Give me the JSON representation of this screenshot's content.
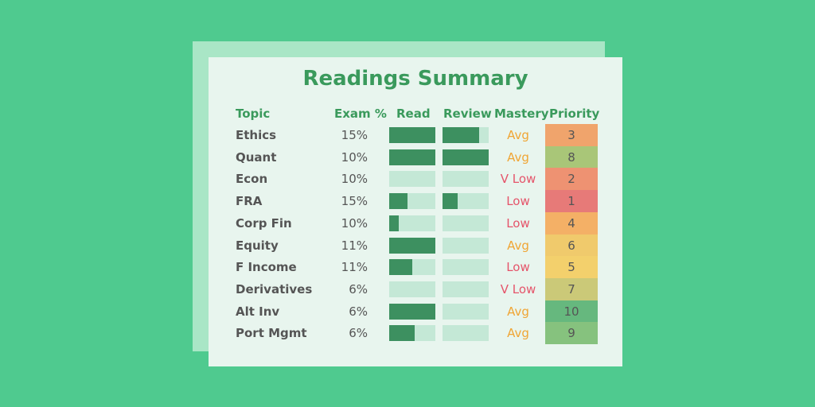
{
  "header": {
    "title": "Readings Summary"
  },
  "table": {
    "columns": [
      "Topic",
      "Exam %",
      "Read",
      "Review",
      "Mastery",
      "Priority"
    ],
    "rows": [
      {
        "topic": "Ethics",
        "exam": "15%",
        "read": 1.0,
        "review": 0.8,
        "mastery": "Avg",
        "mastery_color": "#f0a534",
        "priority": "3",
        "priority_color": "#f0a46c"
      },
      {
        "topic": "Quant",
        "exam": "10%",
        "read": 1.0,
        "review": 1.0,
        "mastery": "Avg",
        "mastery_color": "#f0a534",
        "priority": "8",
        "priority_color": "#a9c678"
      },
      {
        "topic": "Econ",
        "exam": "10%",
        "read": 0,
        "review": 0,
        "mastery": "V Low",
        "mastery_color": "#e5546a",
        "priority": "2",
        "priority_color": "#ee9272"
      },
      {
        "topic": "FRA",
        "exam": "15%",
        "read": 0.4,
        "review": 0.33,
        "mastery": "Low",
        "mastery_color": "#e5546a",
        "priority": "1",
        "priority_color": "#e77a78"
      },
      {
        "topic": "Corp Fin",
        "exam": "10%",
        "read": 0.2,
        "review": 0,
        "mastery": "Low",
        "mastery_color": "#e5546a",
        "priority": "4",
        "priority_color": "#f4b066"
      },
      {
        "topic": "Equity",
        "exam": "11%",
        "read": 1.0,
        "review": 0,
        "mastery": "Avg",
        "mastery_color": "#f0a534",
        "priority": "6",
        "priority_color": "#f0ca6c"
      },
      {
        "topic": "F Income",
        "exam": "11%",
        "read": 0.5,
        "review": 0,
        "mastery": "Low",
        "mastery_color": "#e5546a",
        "priority": "5",
        "priority_color": "#f3d06c"
      },
      {
        "topic": "Derivatives",
        "exam": "6%",
        "read": 0,
        "review": 0,
        "mastery": "V Low",
        "mastery_color": "#e5546a",
        "priority": "7",
        "priority_color": "#cbc978"
      },
      {
        "topic": "Alt Inv",
        "exam": "6%",
        "read": 1.0,
        "review": 0,
        "mastery": "Avg",
        "mastery_color": "#f0a534",
        "priority": "10",
        "priority_color": "#66b87e"
      },
      {
        "topic": "Port Mgmt",
        "exam": "6%",
        "read": 0.55,
        "review": 0,
        "mastery": "Avg",
        "mastery_color": "#f0a534",
        "priority": "9",
        "priority_color": "#86c27e"
      }
    ]
  }
}
